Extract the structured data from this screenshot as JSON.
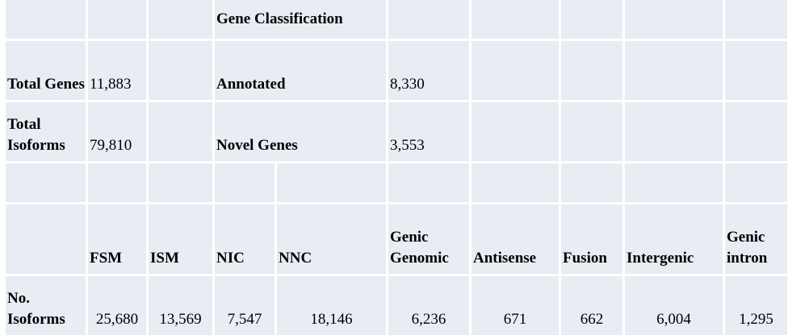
{
  "header": {
    "title": "Gene Classification"
  },
  "summary_rows": [
    {
      "label": "Total Genes",
      "value": "11,883",
      "category": "Annotated",
      "count": "8,330"
    },
    {
      "label": "Total Isoforms",
      "value": "79,810",
      "category": "Novel Genes",
      "count": "3,553"
    }
  ],
  "isoform_table": {
    "headers": [
      "FSM",
      "ISM",
      "NIC",
      "NNC",
      "Genic Genomic",
      "Antisense",
      "Fusion",
      "Intergenic",
      "Genic intron"
    ],
    "row_label": "No. Isoforms",
    "values": [
      "25,680",
      "13,569",
      "7,547",
      "18,146",
      "6,236",
      "671",
      "662",
      "6,004",
      "1,295"
    ]
  },
  "colors": {
    "cell_background": "#e8ecf3",
    "grid_lines": "#ffffff"
  }
}
